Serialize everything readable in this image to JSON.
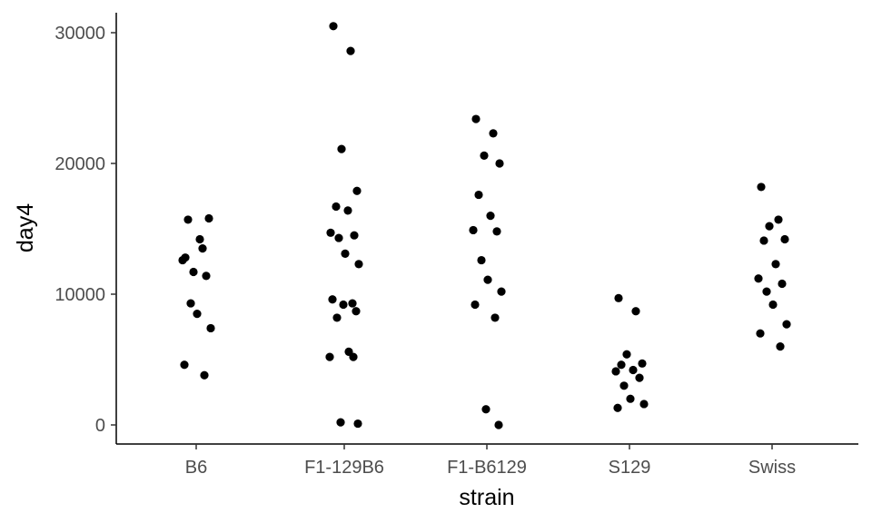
{
  "chart_data": {
    "type": "scatter",
    "xlabel": "strain",
    "ylabel": "day4",
    "categories": [
      "B6",
      "F1-129B6",
      "F1-B6129",
      "S129",
      "Swiss"
    ],
    "yticks": [
      0,
      10000,
      20000,
      30000
    ],
    "ytick_labels": [
      "0",
      "10000",
      "20000",
      "30000"
    ],
    "ylim": [
      -1500,
      32000
    ],
    "grid": false,
    "point_color": "#000000",
    "points": [
      {
        "strain": "B6",
        "day4": 12800
      },
      {
        "strain": "B6",
        "day4": 13500
      },
      {
        "strain": "B6",
        "day4": 11700
      },
      {
        "strain": "B6",
        "day4": 15800
      },
      {
        "strain": "B6",
        "day4": 15700
      },
      {
        "strain": "B6",
        "day4": 14200
      },
      {
        "strain": "B6",
        "day4": 12600
      },
      {
        "strain": "B6",
        "day4": 11400
      },
      {
        "strain": "B6",
        "day4": 9300
      },
      {
        "strain": "B6",
        "day4": 8500
      },
      {
        "strain": "B6",
        "day4": 7400
      },
      {
        "strain": "B6",
        "day4": 4600
      },
      {
        "strain": "B6",
        "day4": 3800
      },
      {
        "strain": "F1-129B6",
        "day4": 30500
      },
      {
        "strain": "F1-129B6",
        "day4": 28600
      },
      {
        "strain": "F1-129B6",
        "day4": 21100
      },
      {
        "strain": "F1-129B6",
        "day4": 17900
      },
      {
        "strain": "F1-129B6",
        "day4": 16700
      },
      {
        "strain": "F1-129B6",
        "day4": 16400
      },
      {
        "strain": "F1-129B6",
        "day4": 14700
      },
      {
        "strain": "F1-129B6",
        "day4": 14500
      },
      {
        "strain": "F1-129B6",
        "day4": 14300
      },
      {
        "strain": "F1-129B6",
        "day4": 13100
      },
      {
        "strain": "F1-129B6",
        "day4": 12300
      },
      {
        "strain": "F1-129B6",
        "day4": 9600
      },
      {
        "strain": "F1-129B6",
        "day4": 9300
      },
      {
        "strain": "F1-129B6",
        "day4": 9200
      },
      {
        "strain": "F1-129B6",
        "day4": 8700
      },
      {
        "strain": "F1-129B6",
        "day4": 8200
      },
      {
        "strain": "F1-129B6",
        "day4": 5600
      },
      {
        "strain": "F1-129B6",
        "day4": 5200
      },
      {
        "strain": "F1-129B6",
        "day4": 5200
      },
      {
        "strain": "F1-129B6",
        "day4": 200
      },
      {
        "strain": "F1-129B6",
        "day4": 100
      },
      {
        "strain": "F1-B6129",
        "day4": 23400
      },
      {
        "strain": "F1-B6129",
        "day4": 22300
      },
      {
        "strain": "F1-B6129",
        "day4": 20600
      },
      {
        "strain": "F1-B6129",
        "day4": 20000
      },
      {
        "strain": "F1-B6129",
        "day4": 17600
      },
      {
        "strain": "F1-B6129",
        "day4": 16000
      },
      {
        "strain": "F1-B6129",
        "day4": 14900
      },
      {
        "strain": "F1-B6129",
        "day4": 14800
      },
      {
        "strain": "F1-B6129",
        "day4": 12600
      },
      {
        "strain": "F1-B6129",
        "day4": 11100
      },
      {
        "strain": "F1-B6129",
        "day4": 10200
      },
      {
        "strain": "F1-B6129",
        "day4": 9200
      },
      {
        "strain": "F1-B6129",
        "day4": 8200
      },
      {
        "strain": "F1-B6129",
        "day4": 1200
      },
      {
        "strain": "F1-B6129",
        "day4": 0
      },
      {
        "strain": "S129",
        "day4": 9700
      },
      {
        "strain": "S129",
        "day4": 8700
      },
      {
        "strain": "S129",
        "day4": 5400
      },
      {
        "strain": "S129",
        "day4": 4700
      },
      {
        "strain": "S129",
        "day4": 4600
      },
      {
        "strain": "S129",
        "day4": 4200
      },
      {
        "strain": "S129",
        "day4": 4100
      },
      {
        "strain": "S129",
        "day4": 3600
      },
      {
        "strain": "S129",
        "day4": 3000
      },
      {
        "strain": "S129",
        "day4": 2000
      },
      {
        "strain": "S129",
        "day4": 1600
      },
      {
        "strain": "S129",
        "day4": 1300
      },
      {
        "strain": "Swiss",
        "day4": 18200
      },
      {
        "strain": "Swiss",
        "day4": 15700
      },
      {
        "strain": "Swiss",
        "day4": 15200
      },
      {
        "strain": "Swiss",
        "day4": 14200
      },
      {
        "strain": "Swiss",
        "day4": 14100
      },
      {
        "strain": "Swiss",
        "day4": 12300
      },
      {
        "strain": "Swiss",
        "day4": 11200
      },
      {
        "strain": "Swiss",
        "day4": 10800
      },
      {
        "strain": "Swiss",
        "day4": 10200
      },
      {
        "strain": "Swiss",
        "day4": 9200
      },
      {
        "strain": "Swiss",
        "day4": 7700
      },
      {
        "strain": "Swiss",
        "day4": 7000
      },
      {
        "strain": "Swiss",
        "day4": 6000
      }
    ]
  }
}
